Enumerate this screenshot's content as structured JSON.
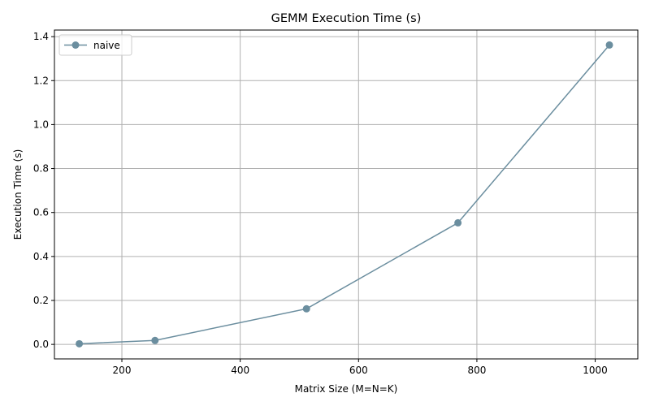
{
  "chart_data": {
    "type": "line",
    "title": "GEMM Execution Time (s)",
    "xlabel": "Matrix Size (M=N=K)",
    "ylabel": "Execution Time (s)",
    "x": [
      128,
      256,
      512,
      768,
      1024
    ],
    "series": [
      {
        "name": "naive",
        "values": [
          0.003,
          0.018,
          0.162,
          0.553,
          1.362
        ],
        "color": "#6b8e9f",
        "marker": "circle"
      }
    ],
    "xlim": [
      86,
      1072
    ],
    "ylim": [
      -0.066,
      1.43
    ],
    "xticks": [
      200,
      400,
      600,
      800,
      1000
    ],
    "xtick_labels": [
      "200",
      "400",
      "600",
      "800",
      "1000"
    ],
    "yticks": [
      0.0,
      0.2,
      0.4,
      0.6,
      0.8,
      1.0,
      1.2,
      1.4
    ],
    "ytick_labels": [
      "0.0",
      "0.2",
      "0.4",
      "0.6",
      "0.8",
      "1.0",
      "1.2",
      "1.4"
    ],
    "grid": true,
    "legend_position": "top-left"
  }
}
